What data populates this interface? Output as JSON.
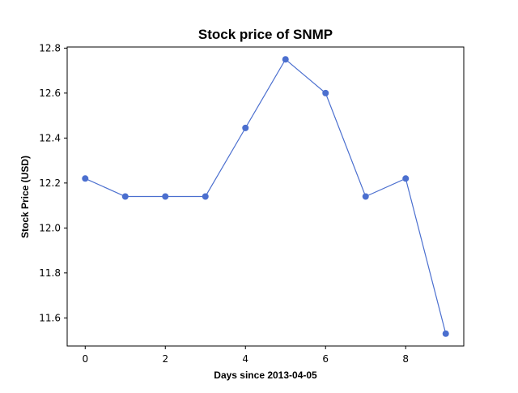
{
  "chart_data": {
    "type": "line",
    "title": "Stock price of SNMP",
    "xlabel": "Days since 2013-04-05",
    "ylabel": "Stock Price (USD)",
    "x": [
      0,
      1,
      2,
      3,
      4,
      5,
      6,
      7,
      8,
      9
    ],
    "series": [
      {
        "values": [
          12.22,
          12.14,
          12.14,
          12.14,
          12.445,
          12.75,
          12.6,
          12.14,
          12.22,
          11.53
        ],
        "color": "#4b6fcf"
      }
    ],
    "xticks": [
      0,
      2,
      4,
      6,
      8
    ],
    "yticks": [
      11.6,
      11.8,
      12.0,
      12.2,
      12.4,
      12.6,
      12.8
    ],
    "xlim": [
      -0.45,
      9.45
    ],
    "ylim": [
      11.475,
      12.805
    ],
    "grid": false,
    "legend": false
  }
}
